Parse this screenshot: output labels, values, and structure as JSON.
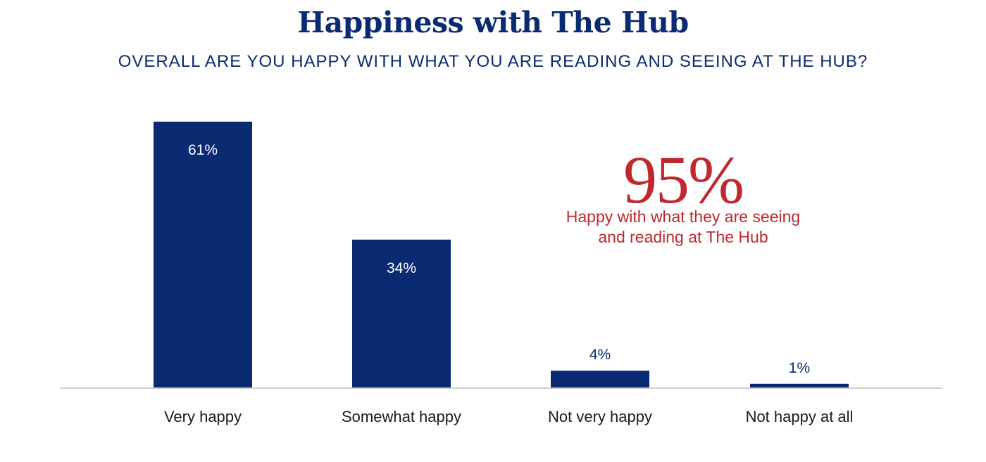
{
  "chart_data": {
    "type": "bar",
    "title": "Happiness with The Hub",
    "subtitle": "OVERALL ARE YOU HAPPY WITH WHAT YOU ARE READING AND SEEING AT THE HUB?",
    "categories": [
      "Very happy",
      "Somewhat happy",
      "Not very happy",
      "Not happy at all"
    ],
    "values": [
      61,
      34,
      4,
      1
    ],
    "data_labels": [
      "61%",
      "34%",
      "4%",
      "1%"
    ],
    "unit": "%",
    "ylim": [
      0,
      61
    ],
    "grid": false,
    "legend": "none",
    "colors": {
      "bar": "#0a2a72",
      "label_inside": "#ffffff",
      "label_outside": "#0a2a72",
      "axis": "#d0d0d0",
      "callout": "#c0282d"
    },
    "annotation": {
      "value": "95%",
      "text": "Happy with what they are seeing\nand reading at The Hub"
    }
  }
}
